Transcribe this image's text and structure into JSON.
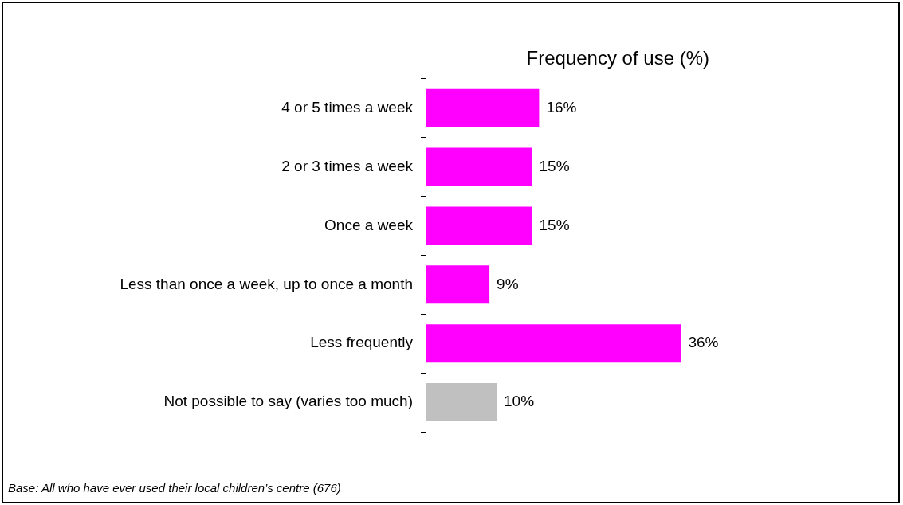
{
  "chart_data": {
    "type": "bar",
    "orientation": "horizontal",
    "title": "Frequency of use (%)",
    "categories": [
      "4 or 5 times a week",
      "2 or 3 times a week",
      "Once a week",
      "Less than once a week, up to once a month",
      "Less frequently",
      "Not possible to say (varies too much)"
    ],
    "values": [
      16,
      15,
      15,
      9,
      36,
      10
    ],
    "colors": [
      "#ff00ff",
      "#ff00ff",
      "#ff00ff",
      "#ff00ff",
      "#ff00ff",
      "#c0c0c0"
    ],
    "value_labels": [
      "16%",
      "15%",
      "15%",
      "9%",
      "36%",
      "10%"
    ],
    "tick_labels": "y",
    "grid": false,
    "legend": false,
    "annotations": [
      "Base: All who have ever used their local children’s centre (676)"
    ]
  }
}
